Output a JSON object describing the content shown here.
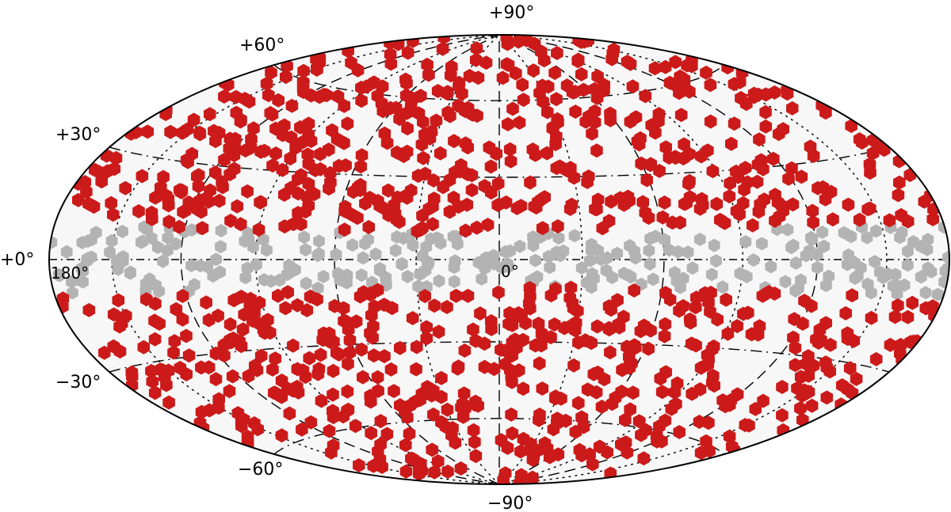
{
  "chart_data": {
    "type": "scatter",
    "projection": "aitoff-hammer all-sky (ellipse)",
    "marker_shape": "hexagon",
    "colors": {
      "background": "#f7f7f7",
      "outline": "#000000",
      "grid": "#000000",
      "masked": "#b3b3b3",
      "selected": "#cc1a1a"
    },
    "labels": {
      "lat_top": "+90°",
      "lat_p60": "+60°",
      "lat_p30": "+30°",
      "lat_0": "+0°",
      "lat_m30": "−30°",
      "lat_m60": "−60°",
      "lat_bottom": "−90°",
      "lon_left": "180°",
      "lon_center": "0°"
    },
    "axes": {
      "lon_range": [
        -180,
        180
      ],
      "lat_range": [
        -90,
        90
      ],
      "lat_grid": [
        -60,
        -30,
        0,
        30,
        60
      ],
      "lon_grid": [
        -150,
        -120,
        -90,
        -60,
        -30,
        0,
        30,
        60,
        90,
        120,
        150
      ]
    },
    "series": [
      {
        "key": "masked",
        "count": 260,
        "lat_band": [
          -10,
          10
        ]
      },
      {
        "key": "selected",
        "count": 1050,
        "lat_band": [
          -90,
          90
        ],
        "exclude_abs_lat_below": 10
      }
    ]
  }
}
